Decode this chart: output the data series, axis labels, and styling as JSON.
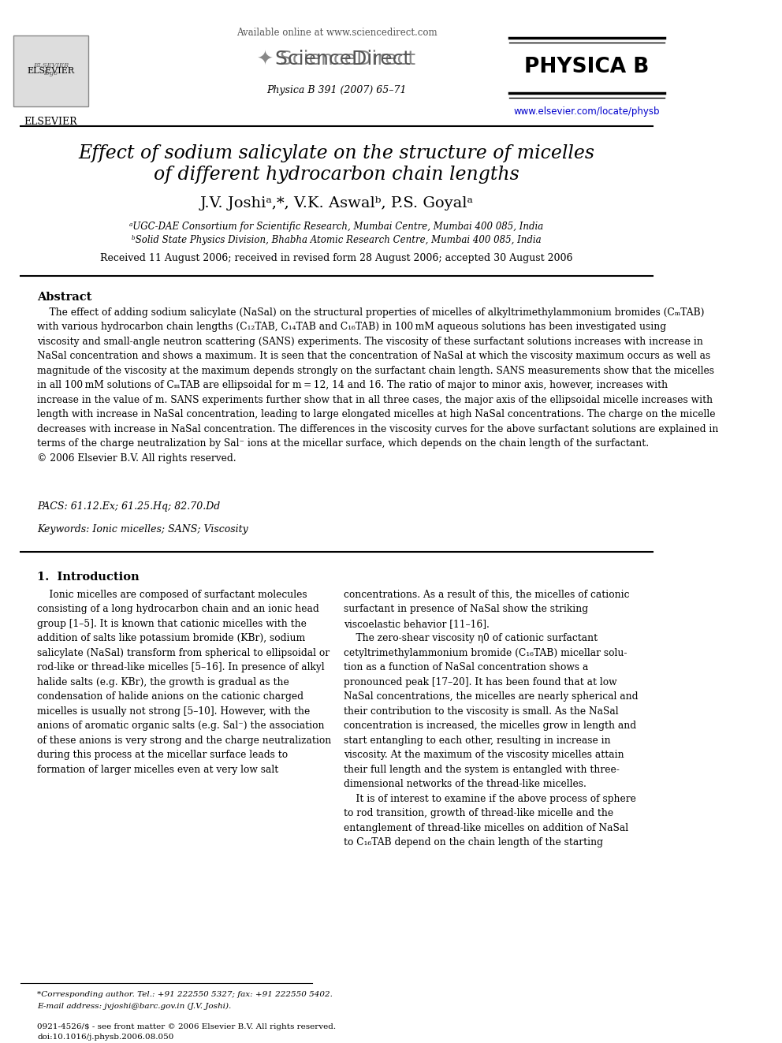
{
  "title_line1": "Effect of sodium salicylate on the structure of micelles",
  "title_line2": "of different hydrocarbon chain lengths",
  "authors": "J.V. Joshiᵃ,*, V.K. Aswalᵇ, P.S. Goyalᵃ",
  "affil_a": "ᵃUGC-DAE Consortium for Scientific Research, Mumbai Centre, Mumbai 400 085, India",
  "affil_b": "ᵇSolid State Physics Division, Bhabha Atomic Research Centre, Mumbai 400 085, India",
  "received": "Received 11 August 2006; received in revised form 28 August 2006; accepted 30 August 2006",
  "journal_line": "Physica B 391 (2007) 65–71",
  "available_online": "Available online at www.sciencedirect.com",
  "journal_url": "www.elsevier.com/locate/physb",
  "abstract_title": "Abstract",
  "abstract_text": "    The effect of adding sodium salicylate (NaSal) on the structural properties of micelles of alkyltrimethylammonium bromides (CₘTAB) with various hydrocarbon chain lengths (C₁₂TAB, C₁₄TAB and C₁₆TAB) in 100 mM aqueous solutions has been investigated using viscosity and small-angle neutron scattering (SANS) experiments. The viscosity of these surfactant solutions increases with increase in NaSal concentration and shows a maximum. It is seen that the concentration of NaSal at which the viscosity maximum occurs as well as magnitude of the viscosity at the maximum depends strongly on the surfactant chain length. SANS measurements show that the micelles in all 100 mM solutions of CₘTAB are ellipsoidal for m = 12, 14 and 16. The ratio of major to minor axis, however, increases with increase in the value of m. SANS experiments further show that in all three cases, the major axis of the ellipsoidal micelle increases with length with increase in NaSal concentration, leading to large elongated micelles at high NaSal concentrations. The charge on the micelle decreases with increase in NaSal concentration. The differences in the viscosity curves for the above surfactant solutions are explained in terms of the charge neutralization by Sal⁻ ions at the micellar surface, which depends on the chain length of the surfactant.\n© 2006 Elsevier B.V. All rights reserved.",
  "pacs": "PACS: 61.12.Ex; 61.25.Hq; 82.70.Dd",
  "keywords": "Keywords: Ionic micelles; SANS; Viscosity",
  "section1_title": "1.  Introduction",
  "section1_left": "    Ionic micelles are composed of surfactant molecules consisting of a long hydrocarbon chain and an ionic head group [1–5]. It is known that cationic micelles with the addition of salts like potassium bromide (KBr), sodium salicylate (NaSal) transform from spherical to ellipsoidal or rod-like or thread-like micelles [5–16]. In presence of alkyl halide salts (e.g. KBr), the growth is gradual as the condensation of halide anions on the cationic charged micelles is usually not strong [5–10]. However, with the anions of aromatic organic salts (e.g. Sal⁻) the association of these anions is very strong and the charge neutralization during this process at the micellar surface leads to formation of larger micelles even at very low salt",
  "section1_right": "concentrations. As a result of this, the micelles of cationic surfactant in presence of NaSal show the striking viscoelastic behavior [11–16].\n    The zero-shear viscosity η₀ of cationic surfactant cetyltrimethylammonium bromide (C₁₆TAB) micellar solution as a function of NaSal concentration shows a pronounced peak [17–20]. It has been found that at low NaSal concentrations, the micelles are nearly spherical and their contribution to the viscosity is small. As the NaSal concentration is increased, the micelles grow in length and start entangling to each other, resulting in increase in viscosity. At the maximum of the viscosity micelles attain their full length and the system is entangled with three-dimensional networks of the thread-like micelles.\n    It is of interest to examine if the above process of sphere to rod transition, growth of thread-like micelle and the entanglement of thread-like micelles on addition of NaSal to C₁₆TAB depend on the chain length of the starting",
  "footnote": "*Corresponding author. Tel.: +91 222550 5327; fax: +91 222550 5402.\nE-mail address: jvjoshi@barc.gov.in (J.V. Joshi).",
  "copyright_footer": "0921-4526/$ - see front matter © 2006 Elsevier B.V. All rights reserved.\ndoi:10.1016/j.physb.2006.08.050",
  "bg_color": "#ffffff",
  "text_color": "#000000",
  "link_color": "#0000cc",
  "header_line_color": "#000000"
}
